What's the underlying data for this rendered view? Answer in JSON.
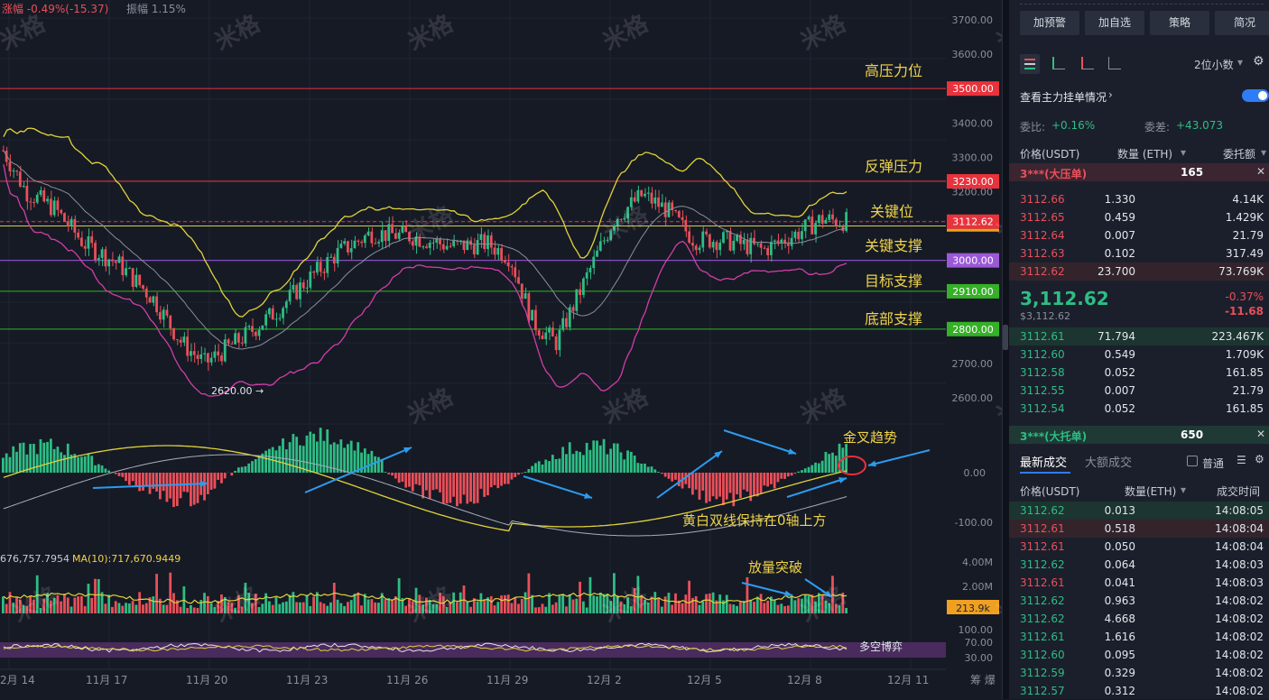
{
  "header": {
    "change": "涨幅 -0.49%(-15.37)",
    "amplitude": "振幅 1.15%"
  },
  "price_axis": {
    "ticks": [
      "3700.00",
      "3600.00",
      "3400.00",
      "3300.00",
      "3200.00",
      "2700.00",
      "2600.00"
    ],
    "tags": [
      {
        "text": "3500.00",
        "color": "#e8323c"
      },
      {
        "text": "3230.00",
        "color": "#e8323c"
      },
      {
        "text": "3112.62",
        "color": "#e8323c"
      },
      {
        "text": "3000.00",
        "color": "#9b59d8"
      },
      {
        "text": "2910.00",
        "color": "#35b027"
      },
      {
        "text": "2800.00",
        "color": "#35b027"
      }
    ]
  },
  "levels": [
    {
      "label": "高压力位",
      "price": 3500,
      "color": "#e8323c"
    },
    {
      "label": "反弹压力",
      "price": 3230,
      "color": "#e8323c"
    },
    {
      "label": "关键位",
      "price": 3112.62,
      "color": "#e8323c"
    },
    {
      "label": "关键支撑",
      "price": 3100,
      "color": "#d9c94a"
    },
    {
      "label": "目标支撑",
      "price": 3000,
      "color": "#9b59d8"
    },
    {
      "label": "底部支撑",
      "price": 2910,
      "color": "#35b027"
    },
    {
      "label": "",
      "price": 2800,
      "color": "#35b027"
    }
  ],
  "annotations": {
    "low_marker": "2620.00 →",
    "golden_cross": "金叉趋势",
    "above_zero": "黄白双线保持在0轴上方",
    "volume_breakout": "放量突破",
    "bull_bear": "多空博弈"
  },
  "macd_axis": [
    "0.00",
    "-100.00"
  ],
  "volume": {
    "ma_text": "676,757.7954",
    "ma10_text": "MA(10):717,670.9449",
    "axis": [
      "4.00M",
      "2.00M"
    ],
    "tag": "213.9k"
  },
  "rsi_axis": [
    "100.00",
    "70.00",
    "30.00"
  ],
  "x_axis": {
    "dates": [
      "2月 14",
      "11月 17",
      "11月 20",
      "11月 23",
      "11月 26",
      "11月 29",
      "12月 2",
      "12月 5",
      "12月 8",
      "12月 11"
    ],
    "right": "筹 爆"
  },
  "watermark": "米格",
  "sidebar": {
    "buttons": [
      "加预警",
      "加自选",
      "策略",
      "简况"
    ],
    "precision": "2位小数",
    "main_orders": "查看主力挂单情况",
    "weibi_label": "委比:",
    "weibi_value": "+0.16%",
    "weicha_label": "委差:",
    "weicha_value": "+43.073",
    "columns": [
      "价格(USDT)",
      "数量 (ETH)",
      "委托额"
    ],
    "big_ask": {
      "name": "3***(大压单)",
      "qty": "165"
    },
    "asks": [
      {
        "p": "3112.66",
        "q": "1.330",
        "a": "4.14K"
      },
      {
        "p": "3112.65",
        "q": "0.459",
        "a": "1.429K"
      },
      {
        "p": "3112.64",
        "q": "0.007",
        "a": "21.79"
      },
      {
        "p": "3112.63",
        "q": "0.102",
        "a": "317.49"
      },
      {
        "p": "3112.62",
        "q": "23.700",
        "a": "73.769K"
      }
    ],
    "last_price": "3,112.62",
    "last_price_sub": "$3,112.62",
    "last_change_pct": "-0.37%",
    "last_change": "-11.68",
    "bids": [
      {
        "p": "3112.61",
        "q": "71.794",
        "a": "223.467K"
      },
      {
        "p": "3112.60",
        "q": "0.549",
        "a": "1.709K"
      },
      {
        "p": "3112.58",
        "q": "0.052",
        "a": "161.85"
      },
      {
        "p": "3112.55",
        "q": "0.007",
        "a": "21.79"
      },
      {
        "p": "3112.54",
        "q": "0.052",
        "a": "161.85"
      }
    ],
    "big_bid": {
      "name": "3***(大托单)",
      "qty": "650"
    },
    "trade_tabs": [
      "最新成交",
      "大额成交"
    ],
    "normal_label": "普通",
    "trade_columns": [
      "价格(USDT)",
      "数量(ETH)",
      "成交时间"
    ],
    "trades": [
      {
        "p": "3112.62",
        "q": "0.013",
        "t": "14:08:05",
        "side": "buy"
      },
      {
        "p": "3112.61",
        "q": "0.518",
        "t": "14:08:04",
        "side": "sell"
      },
      {
        "p": "3112.61",
        "q": "0.050",
        "t": "14:08:04",
        "side": "sell"
      },
      {
        "p": "3112.62",
        "q": "0.064",
        "t": "14:08:03",
        "side": "buy"
      },
      {
        "p": "3112.61",
        "q": "0.041",
        "t": "14:08:03",
        "side": "sell"
      },
      {
        "p": "3112.62",
        "q": "0.963",
        "t": "14:08:02",
        "side": "buy"
      },
      {
        "p": "3112.62",
        "q": "4.668",
        "t": "14:08:02",
        "side": "buy"
      },
      {
        "p": "3112.61",
        "q": "1.616",
        "t": "14:08:02",
        "side": "buy"
      },
      {
        "p": "3112.60",
        "q": "0.095",
        "t": "14:08:02",
        "side": "buy"
      },
      {
        "p": "3112.59",
        "q": "0.329",
        "t": "14:08:02",
        "side": "buy"
      },
      {
        "p": "3112.57",
        "q": "0.312",
        "t": "14:08:02",
        "side": "buy"
      }
    ]
  }
}
